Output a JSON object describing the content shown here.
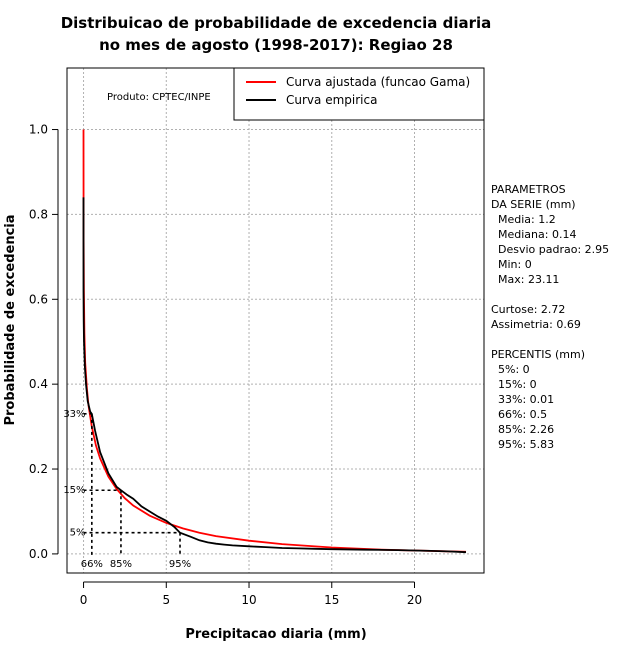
{
  "chart_data": {
    "type": "line",
    "title": [
      "Distribuicao de probabilidade de excedencia diaria",
      "no mes de agosto (1998-2017): Regiao 28"
    ],
    "xlabel": "Precipitacao diaria (mm)",
    "ylabel": "Probabilidade de excedencia",
    "xlim": [
      -1,
      24.2
    ],
    "ylim": [
      -0.045,
      1.145
    ],
    "xticks": [
      0,
      5,
      10,
      15,
      20
    ],
    "yticks": [
      0.0,
      0.2,
      0.4,
      0.6,
      0.8,
      1.0
    ],
    "ytick_labels": [
      "0.0",
      "0.2",
      "0.4",
      "0.6",
      "0.8",
      "1.0"
    ],
    "grid": true,
    "product_label": "Produto: CPTEC/INPE",
    "legend_position": "top-right",
    "series": [
      {
        "name": "Curva ajustada (funcao Gama)",
        "color": "#ff0000",
        "x": [
          0.0,
          0.005,
          0.02,
          0.05,
          0.1,
          0.2,
          0.3,
          0.5,
          0.75,
          1.0,
          1.5,
          2.0,
          2.5,
          3.0,
          4.0,
          5.0,
          6.0,
          7.0,
          8.0,
          10.0,
          12.0,
          15.0,
          18.0,
          20.0,
          23.11
        ],
        "y": [
          1.0,
          0.74,
          0.62,
          0.52,
          0.45,
          0.39,
          0.35,
          0.3,
          0.255,
          0.225,
          0.182,
          0.153,
          0.131,
          0.114,
          0.09,
          0.073,
          0.06,
          0.05,
          0.042,
          0.031,
          0.023,
          0.015,
          0.01,
          0.008,
          0.005
        ]
      },
      {
        "name": "Curva empirica",
        "color": "#000000",
        "x": [
          0.0,
          0.0,
          0.01,
          0.03,
          0.08,
          0.15,
          0.25,
          0.4,
          0.5,
          0.7,
          1.0,
          1.5,
          2.0,
          2.26,
          2.6,
          3.0,
          3.5,
          4.0,
          4.5,
          5.0,
          5.5,
          5.83,
          6.5,
          7.0,
          7.5,
          8.0,
          8.5,
          9.0,
          10.0,
          11.0,
          12.0,
          13.0,
          14.0,
          15.0,
          17.0,
          19.0,
          20.0,
          21.0,
          22.0,
          23.11
        ],
        "y": [
          0.84,
          0.62,
          0.55,
          0.5,
          0.44,
          0.4,
          0.36,
          0.335,
          0.33,
          0.29,
          0.24,
          0.19,
          0.158,
          0.15,
          0.14,
          0.13,
          0.112,
          0.1,
          0.088,
          0.078,
          0.063,
          0.05,
          0.04,
          0.032,
          0.027,
          0.024,
          0.022,
          0.02,
          0.018,
          0.016,
          0.014,
          0.013,
          0.012,
          0.011,
          0.01,
          0.009,
          0.008,
          0.007,
          0.006,
          0.004
        ]
      }
    ],
    "percentile_guides": [
      {
        "label": "33%",
        "y": 0.33,
        "x": 0.5,
        "x_label": "66%"
      },
      {
        "label": "15%",
        "y": 0.15,
        "x": 2.26,
        "x_label": "85%"
      },
      {
        "label": "5%",
        "y": 0.05,
        "x": 5.83,
        "x_label": "95%"
      }
    ],
    "side_text": [
      "PARAMETROS",
      "DA SERIE (mm)",
      "  Media: 1.2",
      "  Mediana: 0.14",
      "  Desvio padrao: 2.95",
      "  Min: 0",
      "  Max: 23.11",
      "",
      "Curtose: 2.72",
      "Assimetria: 0.69",
      "",
      "PERCENTIS (mm)",
      "  5%: 0",
      "  15%: 0",
      "  33%: 0.01",
      "  66%: 0.5",
      "  85%: 2.26",
      "  95%: 5.83"
    ]
  }
}
